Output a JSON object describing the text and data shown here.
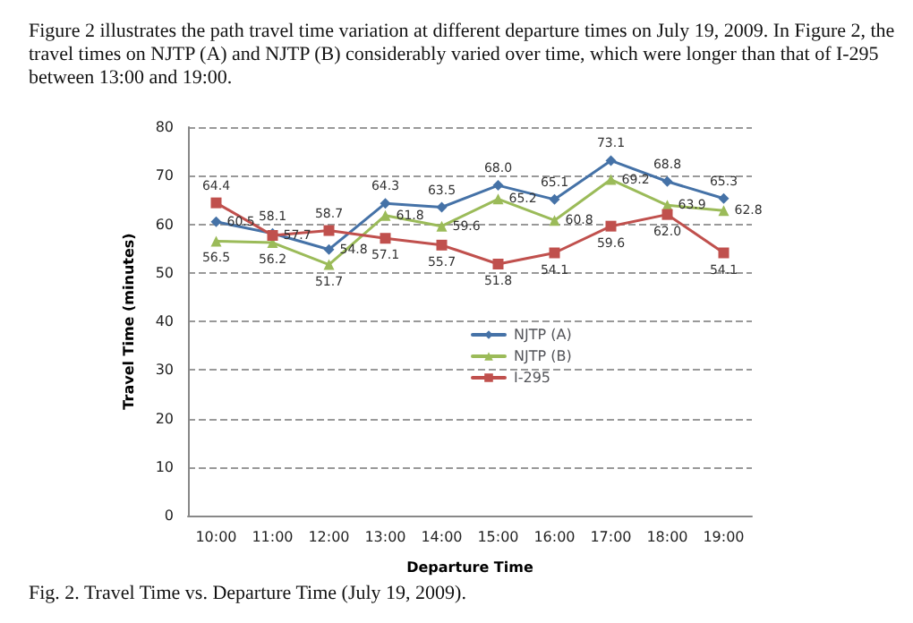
{
  "chart_data": {
    "type": "line",
    "xlabel": "Departure Time",
    "ylabel": "Travel Time (minutes)",
    "categories": [
      "10:00",
      "11:00",
      "12:00",
      "13:00",
      "14:00",
      "15:00",
      "16:00",
      "17:00",
      "18:00",
      "19:00"
    ],
    "series": [
      {
        "name": "NJTP (A)",
        "color": "#4572a7",
        "marker": "diamond",
        "values": [
          60.5,
          58.1,
          54.8,
          64.3,
          63.5,
          68.0,
          65.1,
          73.1,
          68.8,
          65.3
        ],
        "value_labels": [
          "60.5",
          "58.1",
          "54.8",
          "64.3",
          "63.5",
          "68.0",
          "65.1",
          "73.1",
          "68.8",
          "65.3"
        ]
      },
      {
        "name": "NJTP (B)",
        "color": "#9bbb59",
        "marker": "triangle",
        "values": [
          56.5,
          56.2,
          51.7,
          61.8,
          59.6,
          65.2,
          60.8,
          69.2,
          63.9,
          62.8
        ],
        "value_labels": [
          "56.5",
          "56.2",
          "51.7",
          "61.8",
          "59.6",
          "65.2",
          "60.8",
          "69.2",
          "63.9",
          "62.8"
        ]
      },
      {
        "name": "I-295",
        "color": "#c0504d",
        "marker": "square",
        "values": [
          64.4,
          57.7,
          58.7,
          57.1,
          55.7,
          51.8,
          54.1,
          59.6,
          62.0,
          54.1
        ],
        "value_labels": [
          "64.4",
          "57.7",
          "58.7",
          "57.1",
          "55.7",
          "51.8",
          "54.1",
          "59.6",
          "62.0",
          "54.1"
        ]
      }
    ],
    "ylim": [
      0,
      80
    ],
    "yticks": [
      0,
      10,
      20,
      30,
      40,
      50,
      60,
      70,
      80
    ],
    "grid": "y",
    "legend": "center",
    "annotations": [
      "Figure 2 illustrates the path travel time variation at different departure times on July 19, 2009. In Figure 2, the travel times on NJTP (A) and NJTP (B) considerably varied over time, which were longer than that of I-295 between 13:00 and 19:00.",
      "Fig. 2. Travel Time vs. Departure Time (July 19, 2009)."
    ]
  }
}
